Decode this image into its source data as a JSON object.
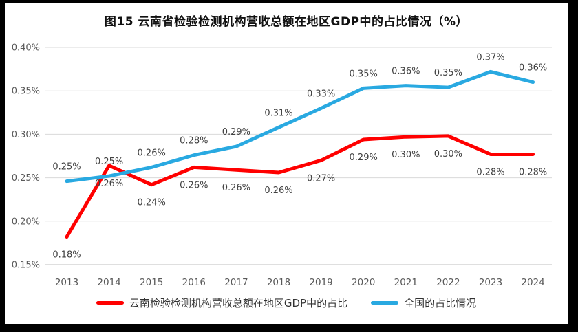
{
  "figure": {
    "title": "图15 云南省检验检测机构营收总额在地区GDP中的占比情况（%）"
  },
  "chart_data": {
    "type": "line",
    "title": "图15 云南省检验检测机构营收总额在地区GDP中的占比情况（%）",
    "categories": [
      "2013",
      "2014",
      "2015",
      "2016",
      "2017",
      "2018",
      "2019",
      "2020",
      "2021",
      "2022",
      "2023",
      "2024"
    ],
    "y_ticks": [
      "0.40%",
      "0.35%",
      "0.30%",
      "0.25%",
      "0.20%",
      "0.15%"
    ],
    "ylim": [
      0.15,
      0.4
    ],
    "grid": true,
    "legend_position": "bottom",
    "series": [
      {
        "name": "云南检验检测机构营收总额在地区GDP中的占比",
        "color": "#FF0000",
        "label_side": "below",
        "values": [
          0.182,
          0.264,
          0.242,
          0.262,
          0.259,
          0.256,
          0.27,
          0.294,
          0.297,
          0.298,
          0.277,
          0.277
        ],
        "labels": [
          "0.18%",
          "0.26%",
          "0.24%",
          "0.26%",
          "0.26%",
          "0.26%",
          "0.27%",
          "0.29%",
          "0.30%",
          "0.30%",
          "0.28%",
          "0.28%"
        ]
      },
      {
        "name": "全国的占比情况",
        "color": "#29A9E1",
        "label_side": "above",
        "values": [
          0.246,
          0.252,
          0.262,
          0.276,
          0.286,
          0.308,
          0.33,
          0.353,
          0.356,
          0.354,
          0.372,
          0.36
        ],
        "labels": [
          "0.25%",
          "0.25%",
          "0.26%",
          "0.28%",
          "0.29%",
          "0.31%",
          "0.33%",
          "0.35%",
          "0.36%",
          "0.35%",
          "0.37%",
          "0.36%"
        ]
      }
    ]
  },
  "theme": {
    "frame_color": "#000000",
    "background": "#FFFFFF",
    "gridline_color": "#D9D9D9",
    "axis_line_color": "#BFBFBF",
    "tick_label_color": "#595959",
    "data_label_color": "#404040",
    "title_color": "#111111",
    "legend_text_color": "#333333"
  }
}
